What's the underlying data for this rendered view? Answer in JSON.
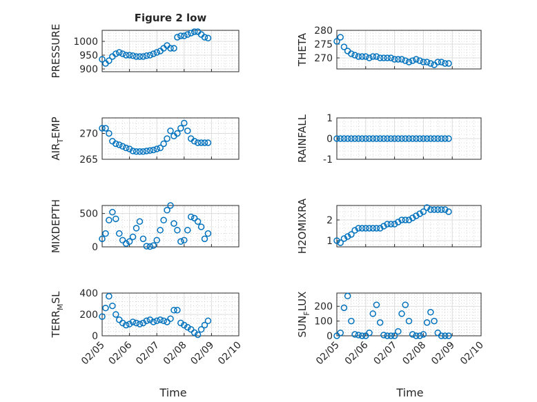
{
  "figure": {
    "title": "Figure 2 low",
    "x_label": "Time"
  },
  "chart_data": [
    {
      "type": "scatter",
      "panel": "top-left",
      "title": "Figure 2 low",
      "ylabel": "PRESSURE",
      "xlabel": "",
      "xlim": [
        "02/05",
        "02/10"
      ],
      "ylim": [
        890,
        1040
      ],
      "yticks": [
        900,
        950,
        1000
      ],
      "xticks": [],
      "grid": "on, major and minor",
      "marker": "open circle",
      "color": "#0072bd",
      "x": [
        "02/05 00:00",
        "02/05 03:00",
        "02/05 06:00",
        "02/05 09:00",
        "02/05 12:00",
        "02/05 15:00",
        "02/05 18:00",
        "02/05 21:00",
        "02/06 00:00",
        "02/06 03:00",
        "02/06 06:00",
        "02/06 09:00",
        "02/06 12:00",
        "02/06 15:00",
        "02/06 18:00",
        "02/06 21:00",
        "02/07 00:00",
        "02/07 03:00",
        "02/07 06:00",
        "02/07 09:00",
        "02/07 12:00",
        "02/07 15:00",
        "02/07 18:00",
        "02/07 21:00",
        "02/08 00:00",
        "02/08 03:00",
        "02/08 06:00",
        "02/08 09:00",
        "02/08 12:00",
        "02/08 15:00",
        "02/08 18:00",
        "02/08 21:00"
      ],
      "y": [
        935,
        920,
        930,
        945,
        955,
        960,
        955,
        950,
        950,
        948,
        945,
        945,
        945,
        948,
        950,
        955,
        960,
        965,
        975,
        985,
        975,
        975,
        1015,
        1020,
        1020,
        1025,
        1030,
        1035,
        1035,
        1025,
        1015,
        1012
      ]
    },
    {
      "type": "scatter",
      "panel": "top-right",
      "ylabel": "THETA",
      "xlabel": "",
      "xlim": [
        "02/05",
        "02/10"
      ],
      "ylim": [
        266,
        280
      ],
      "yticks": [
        270,
        275,
        280
      ],
      "xticks": [],
      "grid": "on, major and minor",
      "marker": "open circle",
      "color": "#0072bd",
      "x": [
        "02/05 00:00",
        "02/05 03:00",
        "02/05 06:00",
        "02/05 09:00",
        "02/05 12:00",
        "02/05 15:00",
        "02/05 18:00",
        "02/05 21:00",
        "02/06 00:00",
        "02/06 03:00",
        "02/06 06:00",
        "02/06 09:00",
        "02/06 12:00",
        "02/06 15:00",
        "02/06 18:00",
        "02/06 21:00",
        "02/07 00:00",
        "02/07 03:00",
        "02/07 06:00",
        "02/07 09:00",
        "02/07 12:00",
        "02/07 15:00",
        "02/07 18:00",
        "02/07 21:00",
        "02/08 00:00",
        "02/08 03:00",
        "02/08 06:00",
        "02/08 09:00",
        "02/08 12:00",
        "02/08 15:00",
        "02/08 18:00",
        "02/08 21:00"
      ],
      "y": [
        276,
        277.5,
        274,
        272.5,
        271.5,
        271,
        270.5,
        270.5,
        270.5,
        270,
        270.5,
        270.5,
        270,
        270,
        270,
        270,
        269.5,
        269.5,
        269.5,
        269,
        268.5,
        269,
        269.5,
        269,
        268.5,
        268.5,
        268,
        267.5,
        268.5,
        268.5,
        268,
        268
      ]
    },
    {
      "type": "scatter",
      "panel": "second-left",
      "ylabel": "AIR_TEMP",
      "ylabel_parts": {
        "main": "AIR",
        "sub": "T",
        "rest": "EMP"
      },
      "xlabel": "",
      "xlim": [
        "02/05",
        "02/10"
      ],
      "ylim": [
        265,
        273
      ],
      "yticks": [
        265,
        270
      ],
      "xticks": [],
      "grid": "on, major and minor",
      "marker": "open circle",
      "color": "#0072bd",
      "x": [
        "02/05 00:00",
        "02/05 03:00",
        "02/05 06:00",
        "02/05 09:00",
        "02/05 12:00",
        "02/05 15:00",
        "02/05 18:00",
        "02/05 21:00",
        "02/06 00:00",
        "02/06 03:00",
        "02/06 06:00",
        "02/06 09:00",
        "02/06 12:00",
        "02/06 15:00",
        "02/06 18:00",
        "02/06 21:00",
        "02/07 00:00",
        "02/07 03:00",
        "02/07 06:00",
        "02/07 09:00",
        "02/07 12:00",
        "02/07 15:00",
        "02/07 18:00",
        "02/07 21:00",
        "02/08 00:00",
        "02/08 03:00",
        "02/08 06:00",
        "02/08 09:00",
        "02/08 12:00",
        "02/08 15:00",
        "02/08 18:00",
        "02/08 21:00"
      ],
      "y": [
        271,
        271,
        270,
        268.5,
        268,
        267.8,
        267.5,
        267.2,
        267,
        266.6,
        266.5,
        266.5,
        266.5,
        266.6,
        266.7,
        266.8,
        267,
        267.2,
        268,
        269,
        270.5,
        269.5,
        270,
        271,
        272,
        270.5,
        269,
        268.5,
        268.2,
        268.2,
        268.2,
        268.2
      ]
    },
    {
      "type": "scatter",
      "panel": "second-right",
      "ylabel": "RAINFALL",
      "xlabel": "",
      "xlim": [
        "02/05",
        "02/10"
      ],
      "ylim": [
        -1,
        1
      ],
      "yticks": [
        -1,
        0,
        1
      ],
      "xticks": [],
      "grid": "on, major and minor",
      "marker": "open circle",
      "color": "#0072bd",
      "x": [
        "02/05 00:00",
        "02/05 03:00",
        "02/05 06:00",
        "02/05 09:00",
        "02/05 12:00",
        "02/05 15:00",
        "02/05 18:00",
        "02/05 21:00",
        "02/06 00:00",
        "02/06 03:00",
        "02/06 06:00",
        "02/06 09:00",
        "02/06 12:00",
        "02/06 15:00",
        "02/06 18:00",
        "02/06 21:00",
        "02/07 00:00",
        "02/07 03:00",
        "02/07 06:00",
        "02/07 09:00",
        "02/07 12:00",
        "02/07 15:00",
        "02/07 18:00",
        "02/07 21:00",
        "02/08 00:00",
        "02/08 03:00",
        "02/08 06:00",
        "02/08 09:00",
        "02/08 12:00",
        "02/08 15:00",
        "02/08 18:00",
        "02/08 21:00"
      ],
      "y": [
        0,
        0,
        0,
        0,
        0,
        0,
        0,
        0,
        0,
        0,
        0,
        0,
        0,
        0,
        0,
        0,
        0,
        0,
        0,
        0,
        0,
        0,
        0,
        0,
        0,
        0,
        0,
        0,
        0,
        0,
        0,
        0
      ]
    },
    {
      "type": "scatter",
      "panel": "third-left",
      "ylabel": "MIXDEPTH",
      "xlabel": "",
      "xlim": [
        "02/05",
        "02/10"
      ],
      "ylim": [
        0,
        620
      ],
      "yticks": [
        0,
        500
      ],
      "xticks": [],
      "grid": "on, major and minor",
      "marker": "open circle",
      "color": "#0072bd",
      "x": [
        "02/05 00:00",
        "02/05 03:00",
        "02/05 06:00",
        "02/05 09:00",
        "02/05 12:00",
        "02/05 15:00",
        "02/05 18:00",
        "02/05 21:00",
        "02/06 00:00",
        "02/06 03:00",
        "02/06 06:00",
        "02/06 09:00",
        "02/06 12:00",
        "02/06 15:00",
        "02/06 18:00",
        "02/06 21:00",
        "02/07 00:00",
        "02/07 03:00",
        "02/07 06:00",
        "02/07 09:00",
        "02/07 12:00",
        "02/07 15:00",
        "02/07 18:00",
        "02/07 21:00",
        "02/08 00:00",
        "02/08 03:00",
        "02/08 06:00",
        "02/08 09:00",
        "02/08 12:00",
        "02/08 15:00",
        "02/08 18:00",
        "02/08 21:00"
      ],
      "y": [
        120,
        200,
        400,
        520,
        420,
        200,
        100,
        50,
        80,
        150,
        280,
        380,
        120,
        10,
        5,
        20,
        100,
        250,
        400,
        550,
        620,
        350,
        250,
        80,
        100,
        250,
        450,
        430,
        380,
        300,
        120,
        200
      ]
    },
    {
      "type": "scatter",
      "panel": "third-right",
      "ylabel": "H2OMIXRA",
      "xlabel": "",
      "xlim": [
        "02/05",
        "02/10"
      ],
      "ylim": [
        0.7,
        2.7
      ],
      "yticks": [
        1,
        2
      ],
      "xticks": [],
      "grid": "on, major and minor",
      "marker": "open circle",
      "color": "#0072bd",
      "x": [
        "02/05 00:00",
        "02/05 03:00",
        "02/05 06:00",
        "02/05 09:00",
        "02/05 12:00",
        "02/05 15:00",
        "02/05 18:00",
        "02/05 21:00",
        "02/06 00:00",
        "02/06 03:00",
        "02/06 06:00",
        "02/06 09:00",
        "02/06 12:00",
        "02/06 15:00",
        "02/06 18:00",
        "02/06 21:00",
        "02/07 00:00",
        "02/07 03:00",
        "02/07 06:00",
        "02/07 09:00",
        "02/07 12:00",
        "02/07 15:00",
        "02/07 18:00",
        "02/07 21:00",
        "02/08 00:00",
        "02/08 03:00",
        "02/08 06:00",
        "02/08 09:00",
        "02/08 12:00",
        "02/08 15:00",
        "02/08 18:00",
        "02/08 21:00"
      ],
      "y": [
        1.0,
        0.9,
        1.1,
        1.2,
        1.3,
        1.5,
        1.6,
        1.6,
        1.6,
        1.6,
        1.6,
        1.6,
        1.6,
        1.7,
        1.8,
        1.8,
        1.8,
        1.9,
        2.0,
        2.0,
        2.0,
        2.1,
        2.2,
        2.3,
        2.4,
        2.6,
        2.5,
        2.5,
        2.5,
        2.5,
        2.5,
        2.4
      ]
    },
    {
      "type": "scatter",
      "panel": "bottom-left",
      "ylabel": "TERR_MSL",
      "ylabel_parts": {
        "main": "TERR",
        "sub": "M",
        "rest": "SL"
      },
      "xlabel": "Time",
      "xlim": [
        "02/05",
        "02/10"
      ],
      "ylim": [
        0,
        400
      ],
      "yticks": [
        0,
        200,
        400
      ],
      "xticks": [
        "02/05",
        "02/06",
        "02/07",
        "02/08",
        "02/09",
        "02/10"
      ],
      "grid": "on, major and minor",
      "marker": "open circle",
      "color": "#0072bd",
      "x": [
        "02/05 00:00",
        "02/05 03:00",
        "02/05 06:00",
        "02/05 09:00",
        "02/05 12:00",
        "02/05 15:00",
        "02/05 18:00",
        "02/05 21:00",
        "02/06 00:00",
        "02/06 03:00",
        "02/06 06:00",
        "02/06 09:00",
        "02/06 12:00",
        "02/06 15:00",
        "02/06 18:00",
        "02/06 21:00",
        "02/07 00:00",
        "02/07 03:00",
        "02/07 06:00",
        "02/07 09:00",
        "02/07 12:00",
        "02/07 15:00",
        "02/07 18:00",
        "02/07 21:00",
        "02/08 00:00",
        "02/08 03:00",
        "02/08 06:00",
        "02/08 09:00",
        "02/08 12:00",
        "02/08 15:00",
        "02/08 18:00",
        "02/08 21:00"
      ],
      "y": [
        180,
        260,
        370,
        280,
        200,
        150,
        120,
        100,
        110,
        130,
        120,
        110,
        120,
        140,
        150,
        130,
        140,
        150,
        140,
        130,
        160,
        240,
        240,
        120,
        100,
        80,
        60,
        30,
        10,
        60,
        100,
        140
      ]
    },
    {
      "type": "scatter",
      "panel": "bottom-right",
      "ylabel": "SUN_FLUX",
      "ylabel_parts": {
        "main": "SUN",
        "sub": "F",
        "rest": "LUX"
      },
      "xlabel": "Time",
      "xlim": [
        "02/05",
        "02/10"
      ],
      "ylim": [
        0,
        290
      ],
      "yticks": [
        0,
        100,
        200
      ],
      "xticks": [
        "02/05",
        "02/06",
        "02/07",
        "02/08",
        "02/09",
        "02/10"
      ],
      "grid": "on, major and minor",
      "marker": "open circle",
      "color": "#0072bd",
      "x": [
        "02/05 00:00",
        "02/05 03:00",
        "02/05 06:00",
        "02/05 09:00",
        "02/05 12:00",
        "02/05 15:00",
        "02/05 18:00",
        "02/05 21:00",
        "02/06 00:00",
        "02/06 03:00",
        "02/06 06:00",
        "02/06 09:00",
        "02/06 12:00",
        "02/06 15:00",
        "02/06 18:00",
        "02/06 21:00",
        "02/07 00:00",
        "02/07 03:00",
        "02/07 06:00",
        "02/07 09:00",
        "02/07 12:00",
        "02/07 15:00",
        "02/07 18:00",
        "02/07 21:00",
        "02/08 00:00",
        "02/08 03:00",
        "02/08 06:00",
        "02/08 09:00",
        "02/08 12:00",
        "02/08 15:00",
        "02/08 18:00",
        "02/08 21:00"
      ],
      "y": [
        0,
        20,
        190,
        270,
        100,
        10,
        5,
        0,
        0,
        20,
        150,
        210,
        90,
        5,
        0,
        0,
        0,
        30,
        150,
        210,
        100,
        10,
        0,
        0,
        10,
        90,
        160,
        100,
        20,
        0,
        0,
        0
      ]
    }
  ]
}
